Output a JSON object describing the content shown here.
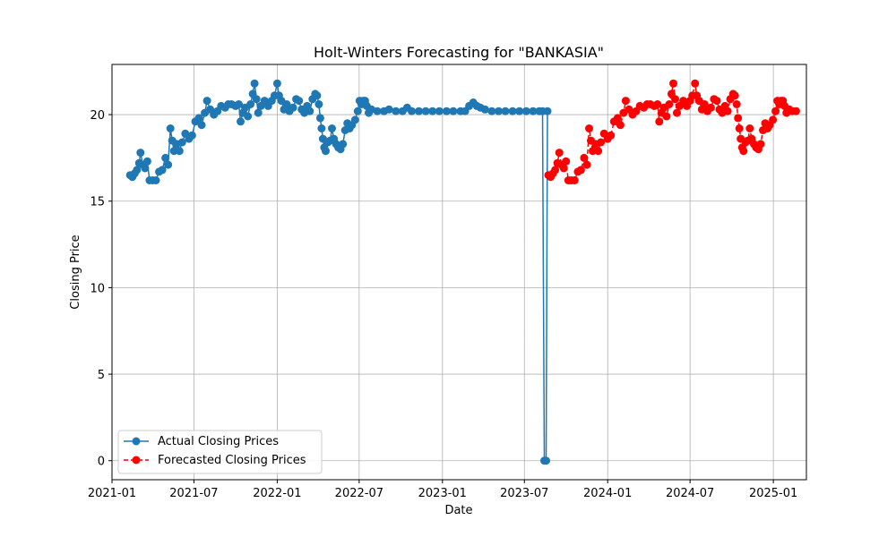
{
  "chart_data": {
    "type": "line",
    "title": "Holt-Winters Forecasting for \"BANKASIA\"",
    "xlabel": "Date",
    "ylabel": "Closing Price",
    "xlim": [
      "2021-01-01",
      "2025-03-15"
    ],
    "ylim": [
      -1.1,
      22.9
    ],
    "x_ticks": [
      "2021-01",
      "2021-07",
      "2022-01",
      "2022-07",
      "2023-01",
      "2023-07",
      "2024-01",
      "2024-07",
      "2025-01"
    ],
    "y_ticks": [
      0,
      5,
      10,
      15,
      20
    ],
    "grid": true,
    "legend_position": "lower-left",
    "series": [
      {
        "name": "Actual Closing Prices",
        "color": "#1f77b4",
        "style": "solid-line-circle-markers",
        "points": [
          [
            "2021-02-10",
            16.5
          ],
          [
            "2021-02-15",
            16.4
          ],
          [
            "2021-02-20",
            16.6
          ],
          [
            "2021-02-25",
            16.8
          ],
          [
            "2021-03-02",
            17.2
          ],
          [
            "2021-03-05",
            17.8
          ],
          [
            "2021-03-10",
            17.1
          ],
          [
            "2021-03-15",
            16.9
          ],
          [
            "2021-03-20",
            17.3
          ],
          [
            "2021-03-25",
            16.2
          ],
          [
            "2021-04-01",
            16.2
          ],
          [
            "2021-04-08",
            16.2
          ],
          [
            "2021-04-15",
            16.7
          ],
          [
            "2021-04-22",
            16.8
          ],
          [
            "2021-04-29",
            17.5
          ],
          [
            "2021-05-05",
            17.1
          ],
          [
            "2021-05-10",
            19.2
          ],
          [
            "2021-05-14",
            18.5
          ],
          [
            "2021-05-18",
            17.9
          ],
          [
            "2021-05-24",
            18.3
          ],
          [
            "2021-05-30",
            17.9
          ],
          [
            "2021-06-05",
            18.4
          ],
          [
            "2021-06-12",
            18.9
          ],
          [
            "2021-06-20",
            18.6
          ],
          [
            "2021-06-27",
            18.8
          ],
          [
            "2021-07-04",
            19.6
          ],
          [
            "2021-07-12",
            19.8
          ],
          [
            "2021-07-18",
            19.4
          ],
          [
            "2021-07-25",
            20.1
          ],
          [
            "2021-07-30",
            20.8
          ],
          [
            "2021-08-06",
            20.3
          ],
          [
            "2021-08-14",
            20.0
          ],
          [
            "2021-08-22",
            20.2
          ],
          [
            "2021-08-30",
            20.5
          ],
          [
            "2021-09-08",
            20.4
          ],
          [
            "2021-09-15",
            20.6
          ],
          [
            "2021-09-22",
            20.6
          ],
          [
            "2021-10-01",
            20.5
          ],
          [
            "2021-10-08",
            20.6
          ],
          [
            "2021-10-12",
            19.6
          ],
          [
            "2021-10-17",
            20.1
          ],
          [
            "2021-10-22",
            20.4
          ],
          [
            "2021-10-28",
            19.9
          ],
          [
            "2021-11-03",
            20.6
          ],
          [
            "2021-11-08",
            21.2
          ],
          [
            "2021-11-12",
            21.8
          ],
          [
            "2021-11-16",
            20.9
          ],
          [
            "2021-11-20",
            20.1
          ],
          [
            "2021-11-26",
            20.5
          ],
          [
            "2021-12-04",
            20.8
          ],
          [
            "2021-12-12",
            20.5
          ],
          [
            "2021-12-20",
            20.8
          ],
          [
            "2021-12-26",
            21.1
          ],
          [
            "2022-01-01",
            21.8
          ],
          [
            "2022-01-05",
            21.1
          ],
          [
            "2022-01-10",
            20.8
          ],
          [
            "2022-01-16",
            20.3
          ],
          [
            "2022-01-22",
            20.6
          ],
          [
            "2022-01-28",
            20.2
          ],
          [
            "2022-02-05",
            20.4
          ],
          [
            "2022-02-12",
            20.9
          ],
          [
            "2022-02-18",
            20.8
          ],
          [
            "2022-02-24",
            20.3
          ],
          [
            "2022-03-02",
            20.1
          ],
          [
            "2022-03-08",
            20.5
          ],
          [
            "2022-03-14",
            20.2
          ],
          [
            "2022-03-20",
            20.9
          ],
          [
            "2022-03-26",
            21.2
          ],
          [
            "2022-03-30",
            21.1
          ],
          [
            "2022-04-03",
            20.6
          ],
          [
            "2022-04-06",
            19.8
          ],
          [
            "2022-04-09",
            19.2
          ],
          [
            "2022-04-12",
            18.6
          ],
          [
            "2022-04-15",
            18.1
          ],
          [
            "2022-04-18",
            17.9
          ],
          [
            "2022-04-23",
            18.4
          ],
          [
            "2022-04-28",
            18.5
          ],
          [
            "2022-05-02",
            19.2
          ],
          [
            "2022-05-06",
            18.6
          ],
          [
            "2022-05-11",
            18.3
          ],
          [
            "2022-05-16",
            18.1
          ],
          [
            "2022-05-21",
            18.0
          ],
          [
            "2022-05-26",
            18.3
          ],
          [
            "2022-05-31",
            19.1
          ],
          [
            "2022-06-05",
            19.5
          ],
          [
            "2022-06-10",
            19.2
          ],
          [
            "2022-06-15",
            19.4
          ],
          [
            "2022-06-22",
            19.7
          ],
          [
            "2022-06-28",
            20.2
          ],
          [
            "2022-07-02",
            20.8
          ],
          [
            "2022-07-06",
            20.6
          ],
          [
            "2022-07-10",
            20.8
          ],
          [
            "2022-07-14",
            20.8
          ],
          [
            "2022-07-18",
            20.5
          ],
          [
            "2022-07-22",
            20.1
          ],
          [
            "2022-07-28",
            20.3
          ],
          [
            "2022-08-10",
            20.2
          ],
          [
            "2022-08-25",
            20.2
          ],
          [
            "2022-09-05",
            20.3
          ],
          [
            "2022-09-20",
            20.2
          ],
          [
            "2022-10-05",
            20.2
          ],
          [
            "2022-10-15",
            20.4
          ],
          [
            "2022-10-25",
            20.2
          ],
          [
            "2022-11-10",
            20.2
          ],
          [
            "2022-11-25",
            20.2
          ],
          [
            "2022-12-10",
            20.2
          ],
          [
            "2022-12-25",
            20.2
          ],
          [
            "2023-01-10",
            20.2
          ],
          [
            "2023-01-25",
            20.2
          ],
          [
            "2023-02-10",
            20.2
          ],
          [
            "2023-02-20",
            20.2
          ],
          [
            "2023-03-01",
            20.5
          ],
          [
            "2023-03-10",
            20.7
          ],
          [
            "2023-03-18",
            20.5
          ],
          [
            "2023-03-26",
            20.4
          ],
          [
            "2023-04-05",
            20.3
          ],
          [
            "2023-04-20",
            20.2
          ],
          [
            "2023-05-05",
            20.2
          ],
          [
            "2023-05-20",
            20.2
          ],
          [
            "2023-06-05",
            20.2
          ],
          [
            "2023-06-20",
            20.2
          ],
          [
            "2023-07-05",
            20.2
          ],
          [
            "2023-07-20",
            20.2
          ],
          [
            "2023-08-03",
            20.2
          ],
          [
            "2023-08-10",
            20.2
          ],
          [
            "2023-08-14",
            0.0
          ],
          [
            "2023-08-18",
            0.0
          ],
          [
            "2023-08-21",
            20.2
          ]
        ]
      },
      {
        "name": "Forecasted Closing Prices",
        "color": "#ff0000",
        "style": "dashed-line-circle-markers",
        "points": [
          [
            "2023-08-23",
            16.5
          ],
          [
            "2023-08-28",
            16.4
          ],
          [
            "2023-09-02",
            16.6
          ],
          [
            "2023-09-07",
            16.8
          ],
          [
            "2023-09-12",
            17.2
          ],
          [
            "2023-09-16",
            17.8
          ],
          [
            "2023-09-21",
            17.1
          ],
          [
            "2023-09-26",
            16.9
          ],
          [
            "2023-10-01",
            17.3
          ],
          [
            "2023-10-06",
            16.2
          ],
          [
            "2023-10-13",
            16.2
          ],
          [
            "2023-10-20",
            16.2
          ],
          [
            "2023-10-27",
            16.7
          ],
          [
            "2023-11-03",
            16.8
          ],
          [
            "2023-11-10",
            17.5
          ],
          [
            "2023-11-16",
            17.1
          ],
          [
            "2023-11-21",
            19.2
          ],
          [
            "2023-11-25",
            18.5
          ],
          [
            "2023-11-29",
            17.9
          ],
          [
            "2023-12-05",
            18.3
          ],
          [
            "2023-12-11",
            17.9
          ],
          [
            "2023-12-17",
            18.4
          ],
          [
            "2023-12-24",
            18.9
          ],
          [
            "2024-01-01",
            18.6
          ],
          [
            "2024-01-08",
            18.8
          ],
          [
            "2024-01-15",
            19.6
          ],
          [
            "2024-01-23",
            19.8
          ],
          [
            "2024-01-29",
            19.4
          ],
          [
            "2024-02-05",
            20.1
          ],
          [
            "2024-02-10",
            20.8
          ],
          [
            "2024-02-17",
            20.3
          ],
          [
            "2024-02-25",
            20.0
          ],
          [
            "2024-03-04",
            20.2
          ],
          [
            "2024-03-12",
            20.5
          ],
          [
            "2024-03-21",
            20.4
          ],
          [
            "2024-03-28",
            20.6
          ],
          [
            "2024-04-04",
            20.6
          ],
          [
            "2024-04-13",
            20.5
          ],
          [
            "2024-04-20",
            20.6
          ],
          [
            "2024-04-24",
            19.6
          ],
          [
            "2024-04-29",
            20.1
          ],
          [
            "2024-05-04",
            20.4
          ],
          [
            "2024-05-10",
            19.9
          ],
          [
            "2024-05-16",
            20.6
          ],
          [
            "2024-05-21",
            21.2
          ],
          [
            "2024-05-25",
            21.8
          ],
          [
            "2024-05-29",
            20.9
          ],
          [
            "2024-06-02",
            20.1
          ],
          [
            "2024-06-08",
            20.5
          ],
          [
            "2024-06-16",
            20.8
          ],
          [
            "2024-06-24",
            20.5
          ],
          [
            "2024-07-01",
            20.8
          ],
          [
            "2024-07-06",
            21.1
          ],
          [
            "2024-07-12",
            21.8
          ],
          [
            "2024-07-16",
            21.1
          ],
          [
            "2024-07-21",
            20.8
          ],
          [
            "2024-07-27",
            20.3
          ],
          [
            "2024-08-02",
            20.6
          ],
          [
            "2024-08-08",
            20.2
          ],
          [
            "2024-08-16",
            20.4
          ],
          [
            "2024-08-23",
            20.9
          ],
          [
            "2024-08-29",
            20.8
          ],
          [
            "2024-09-04",
            20.3
          ],
          [
            "2024-09-10",
            20.1
          ],
          [
            "2024-09-16",
            20.5
          ],
          [
            "2024-09-22",
            20.2
          ],
          [
            "2024-09-28",
            20.9
          ],
          [
            "2024-10-04",
            21.2
          ],
          [
            "2024-10-08",
            21.1
          ],
          [
            "2024-10-12",
            20.6
          ],
          [
            "2024-10-15",
            19.8
          ],
          [
            "2024-10-18",
            19.2
          ],
          [
            "2024-10-21",
            18.6
          ],
          [
            "2024-10-24",
            18.1
          ],
          [
            "2024-10-27",
            17.9
          ],
          [
            "2024-11-01",
            18.4
          ],
          [
            "2024-11-06",
            18.5
          ],
          [
            "2024-11-10",
            19.2
          ],
          [
            "2024-11-14",
            18.6
          ],
          [
            "2024-11-19",
            18.3
          ],
          [
            "2024-11-24",
            18.1
          ],
          [
            "2024-11-29",
            18.0
          ],
          [
            "2024-12-04",
            18.3
          ],
          [
            "2024-12-09",
            19.1
          ],
          [
            "2024-12-14",
            19.5
          ],
          [
            "2024-12-19",
            19.2
          ],
          [
            "2024-12-24",
            19.4
          ],
          [
            "2024-12-31",
            19.7
          ],
          [
            "2025-01-06",
            20.2
          ],
          [
            "2025-01-10",
            20.8
          ],
          [
            "2025-01-14",
            20.6
          ],
          [
            "2025-01-18",
            20.8
          ],
          [
            "2025-01-22",
            20.8
          ],
          [
            "2025-01-26",
            20.5
          ],
          [
            "2025-01-30",
            20.1
          ],
          [
            "2025-02-05",
            20.3
          ],
          [
            "2025-02-12",
            20.2
          ],
          [
            "2025-02-20",
            20.2
          ]
        ]
      }
    ]
  }
}
